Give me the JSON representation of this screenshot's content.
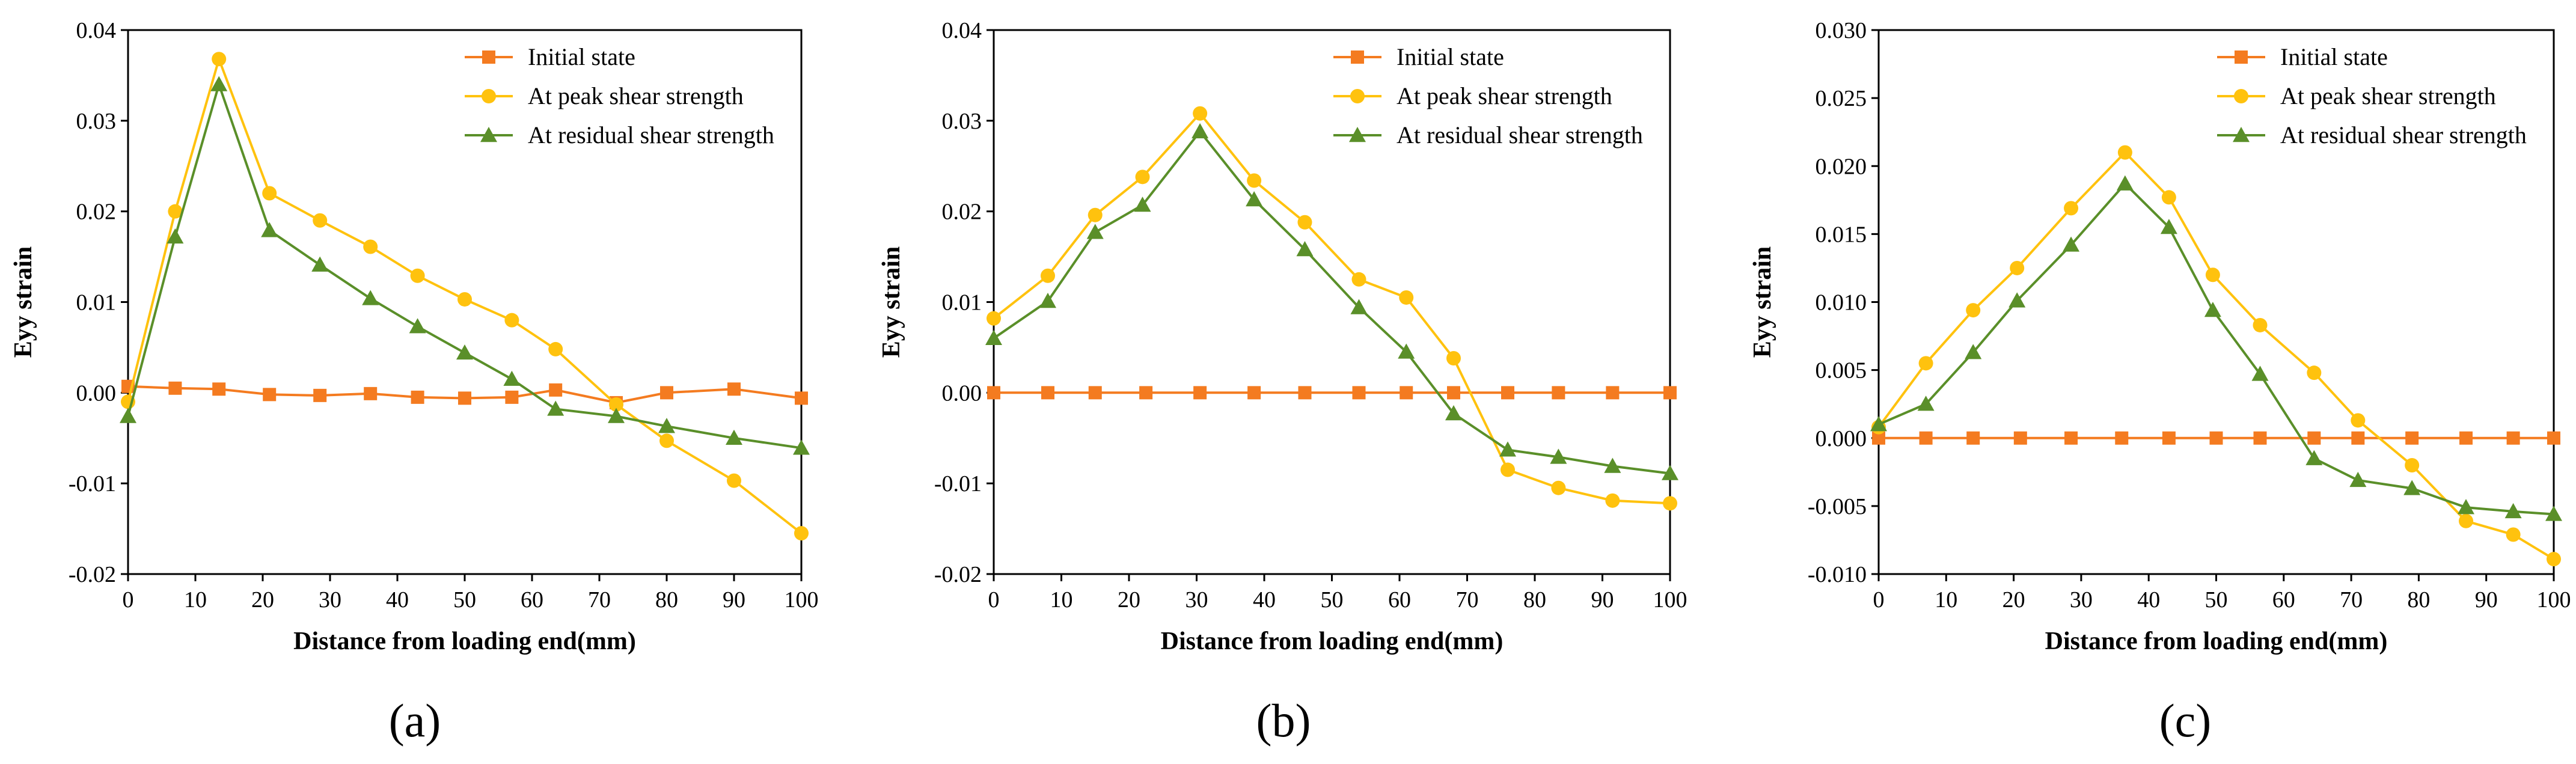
{
  "series_colors": {
    "Initial state": "#F47B20",
    "At peak shear strength": "#FFC20E",
    "At residual shear strength": "#5A8F29"
  },
  "chart_data": [
    {
      "type": "line",
      "panel_label": "(a)",
      "xlabel": "Distance from loading end(mm)",
      "ylabel": "Eyy strain",
      "xlim": [
        0,
        100
      ],
      "ylim": [
        -0.02,
        0.04
      ],
      "xticks": [
        0,
        10,
        20,
        30,
        40,
        50,
        60,
        70,
        80,
        90,
        100
      ],
      "yticks": [
        -0.02,
        -0.01,
        0.0,
        0.01,
        0.02,
        0.03,
        0.04
      ],
      "ytick_labels": [
        "-0.02",
        "-0.01",
        "0.00",
        "0.01",
        "0.02",
        "0.03",
        "0.04"
      ],
      "legend_position": "top-right",
      "series": [
        {
          "name": "Initial state",
          "marker": "square",
          "x": [
            0,
            7,
            13.5,
            21,
            28.5,
            36,
            43,
            50,
            57,
            63.5,
            72.5,
            80,
            90,
            100
          ],
          "y": [
            0.0007,
            0.0005,
            0.0004,
            -0.0002,
            -0.0003,
            -0.0001,
            -0.0005,
            -0.0006,
            -0.0005,
            0.0003,
            -0.0011,
            0.0,
            0.0004,
            -0.0006
          ]
        },
        {
          "name": "At peak shear strength",
          "marker": "circle",
          "x": [
            0,
            7,
            13.5,
            21,
            28.5,
            36,
            43,
            50,
            57,
            63.5,
            72.5,
            80,
            90,
            100
          ],
          "y": [
            -0.001,
            0.02,
            0.0368,
            0.022,
            0.019,
            0.0161,
            0.0129,
            0.0103,
            0.008,
            0.0048,
            -0.0013,
            -0.0053,
            -0.0097,
            -0.0155
          ]
        },
        {
          "name": "At residual shear strength",
          "marker": "triangle",
          "x": [
            0,
            7,
            13.5,
            21,
            28.5,
            36,
            43,
            50,
            57,
            63.5,
            72.5,
            80,
            90,
            100
          ],
          "y": [
            -0.0026,
            0.0172,
            0.034,
            0.0179,
            0.0141,
            0.0104,
            0.0073,
            0.0044,
            0.0015,
            -0.0018,
            -0.0026,
            -0.0037,
            -0.005,
            -0.0061
          ]
        }
      ]
    },
    {
      "type": "line",
      "panel_label": "(b)",
      "xlabel": "Distance from loading end(mm)",
      "ylabel": "Eyy strain",
      "xlim": [
        0,
        100
      ],
      "ylim": [
        -0.02,
        0.04
      ],
      "xticks": [
        0,
        10,
        20,
        30,
        40,
        50,
        60,
        70,
        80,
        90,
        100
      ],
      "yticks": [
        -0.02,
        -0.01,
        0.0,
        0.01,
        0.02,
        0.03,
        0.04
      ],
      "ytick_labels": [
        "-0.02",
        "-0.01",
        "0.00",
        "0.01",
        "0.02",
        "0.03",
        "0.04"
      ],
      "legend_position": "top-right",
      "series": [
        {
          "name": "Initial state",
          "marker": "square",
          "x": [
            0,
            8,
            15,
            22.5,
            30.5,
            38.5,
            46,
            54,
            61,
            68,
            76,
            83.5,
            91.5,
            100
          ],
          "y": [
            0,
            0,
            0,
            0,
            0,
            0,
            0,
            0,
            0,
            0,
            0,
            0,
            0,
            0
          ]
        },
        {
          "name": "At peak shear strength",
          "marker": "circle",
          "x": [
            0,
            8,
            15,
            22,
            30.5,
            38.5,
            46,
            54,
            61,
            68,
            76,
            83.5,
            91.5,
            100
          ],
          "y": [
            0.0082,
            0.0129,
            0.0196,
            0.0238,
            0.0308,
            0.0234,
            0.0188,
            0.0125,
            0.0105,
            0.0038,
            -0.0085,
            -0.0105,
            -0.0119,
            -0.0122
          ]
        },
        {
          "name": "At residual shear strength",
          "marker": "triangle",
          "x": [
            0,
            8,
            15,
            22,
            30.5,
            38.5,
            46,
            54,
            61,
            68,
            76,
            83.5,
            91.5,
            100
          ],
          "y": [
            0.006,
            0.0101,
            0.0177,
            0.0207,
            0.0288,
            0.0213,
            0.0158,
            0.0094,
            0.0045,
            -0.0023,
            -0.0063,
            -0.0071,
            -0.0081,
            -0.0089
          ]
        }
      ]
    },
    {
      "type": "line",
      "panel_label": "(c)",
      "xlabel": "Distance from loading end(mm)",
      "ylabel": "Eyy strain",
      "xlim": [
        0,
        100
      ],
      "ylim": [
        -0.01,
        0.03
      ],
      "xticks": [
        0,
        10,
        20,
        30,
        40,
        50,
        60,
        70,
        80,
        90,
        100
      ],
      "yticks": [
        -0.01,
        -0.005,
        0.0,
        0.005,
        0.01,
        0.015,
        0.02,
        0.025,
        0.03
      ],
      "ytick_labels": [
        "-0.010",
        "-0.005",
        "0.000",
        "0.005",
        "0.010",
        "0.015",
        "0.020",
        "0.025",
        "0.030"
      ],
      "legend_position": "top-right",
      "series": [
        {
          "name": "Initial state",
          "marker": "square",
          "x": [
            0,
            7,
            14,
            21,
            28.5,
            36,
            43,
            50,
            56.5,
            64.5,
            71,
            79,
            87,
            94,
            100
          ],
          "y": [
            0,
            0,
            0,
            0,
            0,
            0,
            0,
            0,
            0,
            0,
            0,
            0,
            0,
            0,
            0
          ]
        },
        {
          "name": "At peak shear strength",
          "marker": "circle",
          "x": [
            0,
            7,
            14,
            20.5,
            28.5,
            36.5,
            43,
            49.5,
            56.5,
            64.5,
            71,
            79,
            87,
            94,
            100
          ],
          "y": [
            0.0008,
            0.0055,
            0.0094,
            0.0125,
            0.0169,
            0.021,
            0.0177,
            0.012,
            0.0083,
            0.0048,
            0.0013,
            -0.002,
            -0.0061,
            -0.0071,
            -0.0089
          ]
        },
        {
          "name": "At residual shear strength",
          "marker": "triangle",
          "x": [
            0,
            7,
            14,
            20.5,
            28.5,
            36.5,
            43,
            49.5,
            56.5,
            64.5,
            71,
            79,
            87,
            94,
            100
          ],
          "y": [
            0.001,
            0.0025,
            0.0063,
            0.0101,
            0.0142,
            0.0187,
            0.0155,
            0.0094,
            0.0047,
            -0.0015,
            -0.0031,
            -0.0037,
            -0.0051,
            -0.0054,
            -0.0056
          ]
        }
      ]
    }
  ]
}
